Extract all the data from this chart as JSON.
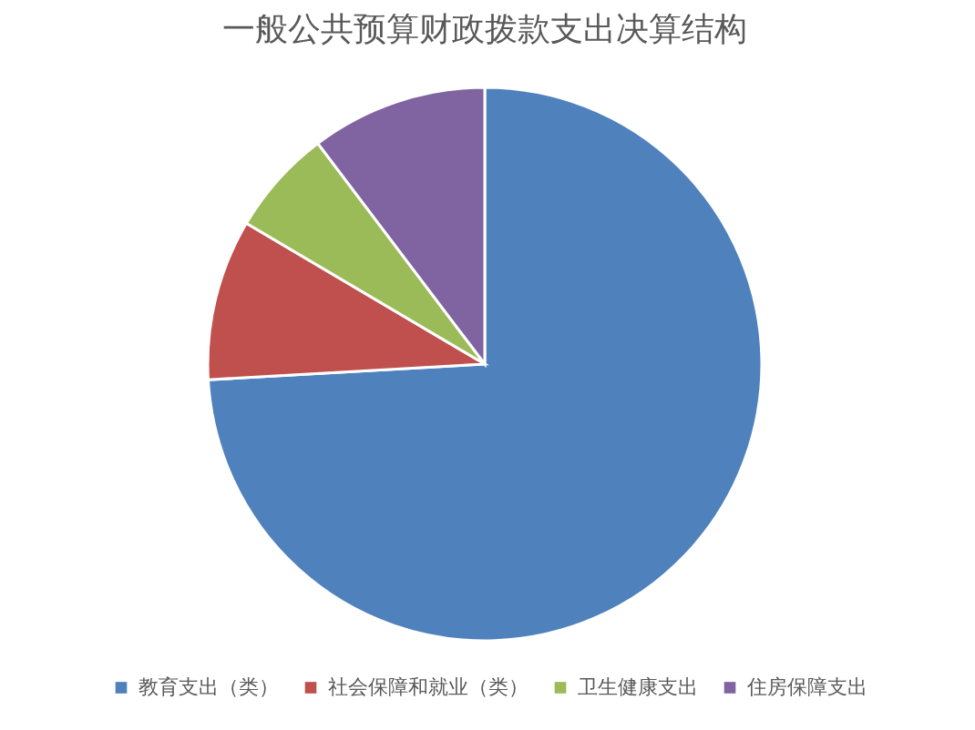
{
  "chart_data": {
    "type": "pie",
    "title": "一般公共预算财政拨款支出决算结构",
    "categories": [
      "教育支出（类）",
      "社会保障和就业（类）",
      "卫生健康支出",
      "住房保障支出"
    ],
    "values": [
      74.1,
      9.4,
      6.2,
      10.3
    ],
    "colors": [
      "#4f81bd",
      "#c0504d",
      "#9bbb59",
      "#8064a2"
    ],
    "legend": "bottom"
  }
}
